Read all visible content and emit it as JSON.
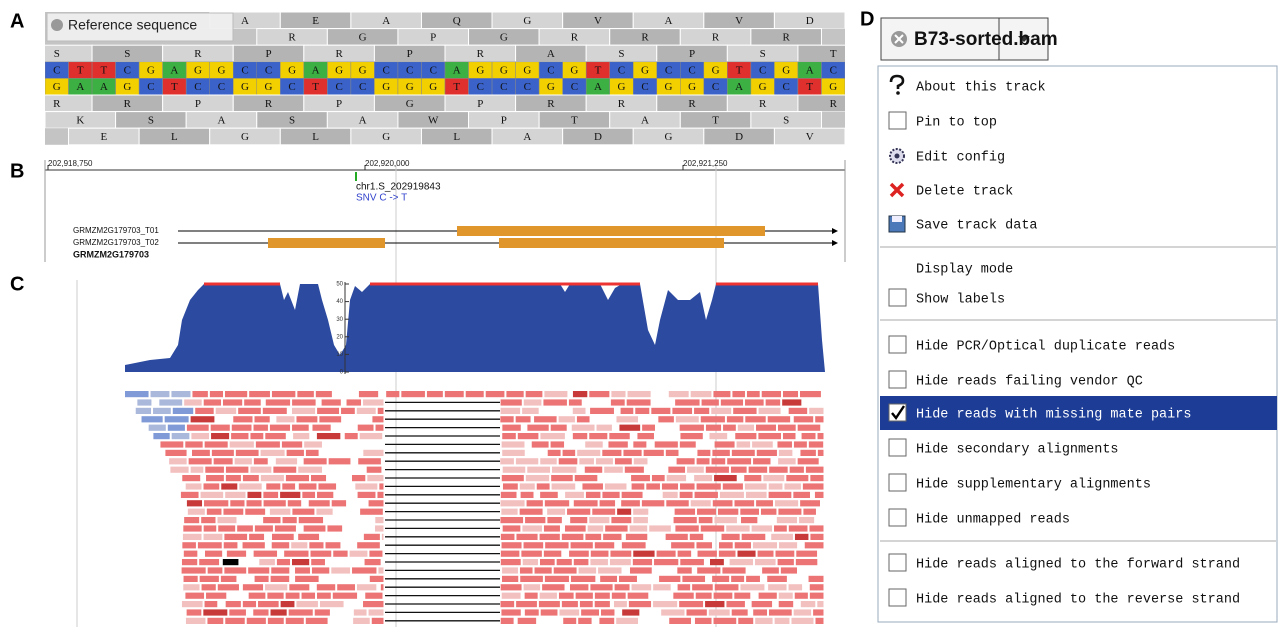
{
  "panels": [
    "A",
    "B",
    "C",
    "D"
  ],
  "reference_track": {
    "label": "Reference sequence",
    "rows_above": [
      [
        "A",
        "E",
        "A",
        "Q",
        "G",
        "V",
        "A",
        "V",
        "D"
      ],
      [
        "R",
        "G",
        "P",
        "G",
        "R",
        "R",
        "R",
        "R"
      ],
      [
        "S",
        "S",
        "R",
        "P",
        "R",
        "P",
        "R",
        "A",
        "S",
        "P",
        "S",
        "T"
      ]
    ],
    "forward_strand": [
      "C",
      "T",
      "T",
      "C",
      "G",
      "A",
      "G",
      "G",
      "C",
      "C",
      "G",
      "A",
      "G",
      "G",
      "C",
      "C",
      "C",
      "A",
      "G",
      "G",
      "G",
      "C",
      "G",
      "T",
      "C",
      "G",
      "C",
      "C",
      "G",
      "T",
      "C",
      "G",
      "A",
      "C"
    ],
    "reverse_strand": [
      "G",
      "A",
      "A",
      "G",
      "C",
      "T",
      "C",
      "C",
      "G",
      "G",
      "C",
      "T",
      "C",
      "C",
      "G",
      "G",
      "G",
      "T",
      "C",
      "C",
      "C",
      "G",
      "C",
      "A",
      "G",
      "C",
      "G",
      "G",
      "C",
      "A",
      "G",
      "C",
      "T",
      "G"
    ],
    "rows_below": [
      [
        "R",
        "R",
        "P",
        "R",
        "P",
        "G",
        "P",
        "R",
        "R",
        "R",
        "R",
        "R"
      ],
      [
        "K",
        "S",
        "A",
        "S",
        "A",
        "W",
        "P",
        "T",
        "A",
        "T",
        "S"
      ],
      [
        "E",
        "L",
        "G",
        "L",
        "G",
        "L",
        "A",
        "D",
        "G",
        "D",
        "V"
      ]
    ]
  },
  "gene_track": {
    "ruler": [
      "202,918,750",
      "202,920,000",
      "202,921,250"
    ],
    "variant": {
      "name": "chr1.S_202919843",
      "description": "SNV C -> T"
    },
    "transcripts": [
      "GRMZM2G179703_T01",
      "GRMZM2G179703_T02"
    ],
    "gene": "GRMZM2G179703"
  },
  "coverage_track": {
    "axis_labels": [
      "50",
      "40",
      "30",
      "20",
      "10",
      "0"
    ]
  },
  "track_menu": {
    "track_name": "B73-sorted.bam",
    "items": [
      {
        "label": "About this track"
      },
      {
        "label": "Pin to top",
        "checked": false
      },
      {
        "label": "Edit config"
      },
      {
        "label": "Delete track"
      },
      {
        "label": "Save track data"
      },
      {
        "label": "Display mode"
      },
      {
        "label": "Show labels",
        "checked": false
      },
      {
        "label": "Hide PCR/Optical duplicate reads",
        "checked": false
      },
      {
        "label": "Hide reads failing vendor QC",
        "checked": false
      },
      {
        "label": "Hide reads with missing mate pairs",
        "checked": true
      },
      {
        "label": "Hide secondary alignments",
        "checked": false
      },
      {
        "label": "Hide supplementary alignments",
        "checked": false
      },
      {
        "label": "Hide unmapped reads",
        "checked": false
      },
      {
        "label": "Hide reads aligned to the forward strand",
        "checked": false
      },
      {
        "label": "Hide reads aligned to the reverse strand",
        "checked": false
      }
    ]
  }
}
